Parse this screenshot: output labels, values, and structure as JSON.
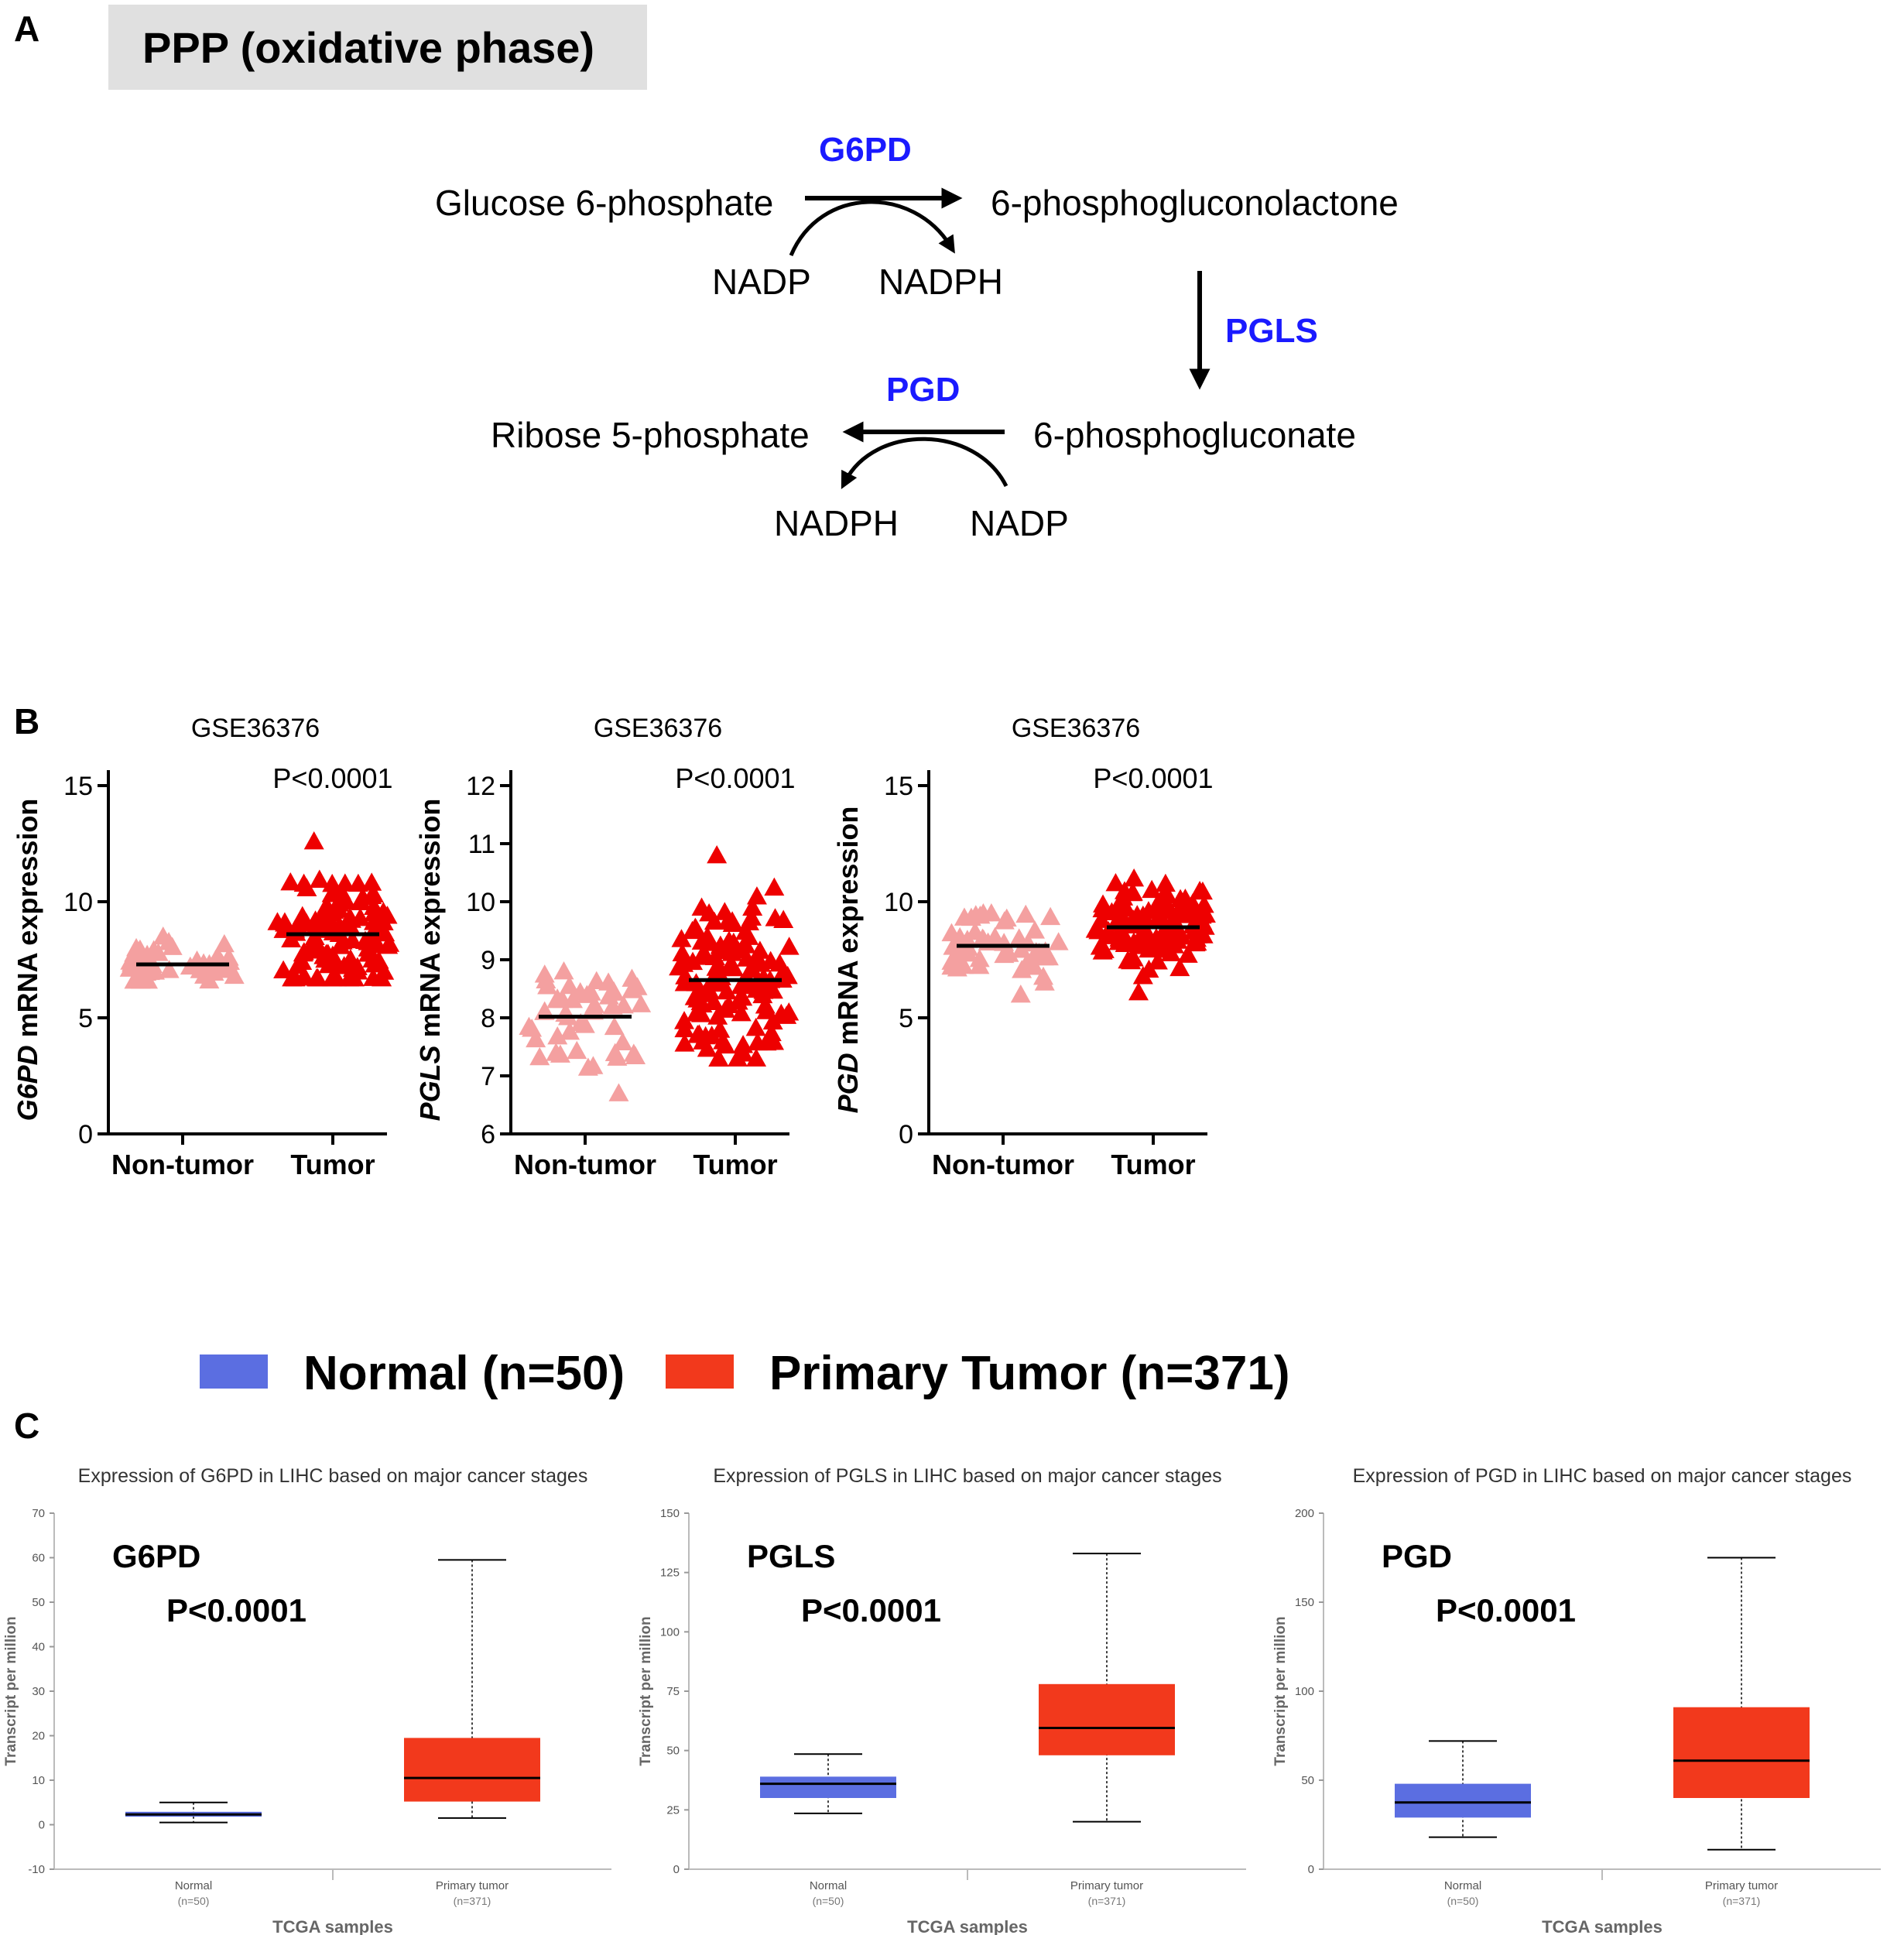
{
  "panels": {
    "a": "A",
    "b": "B",
    "c": "C"
  },
  "pathway": {
    "title": "PPP (oxidative phase)",
    "nodes": {
      "g6p": "Glucose 6-phosphate",
      "pgl": "6-phosphogluconolactone",
      "pg": "6-phosphogluconate",
      "r5p": "Ribose 5-phosphate",
      "nadp1": "NADP",
      "nadph1": "NADPH",
      "nadph2": "NADPH",
      "nadp2": "NADP"
    },
    "enzymes": {
      "g6pd": "G6PD",
      "pgls": "PGLS",
      "pgd": "PGD"
    },
    "colors": {
      "enzyme": "#1a1aff",
      "arrow": "#000000"
    }
  },
  "legend": {
    "normal": {
      "label": "Normal (n=50)",
      "color": "#5b6ee1"
    },
    "tumor": {
      "label": "Primary Tumor (n=371)",
      "color": "#f2391c"
    }
  },
  "chart_data": [
    {
      "type": "scatter",
      "title": "GSE36376",
      "gene": "G6PD",
      "ylabel_rest": " mRNA expression",
      "pvalue": "P<0.0001",
      "categories": [
        "Non-tumor",
        "Tumor"
      ],
      "ylim": [
        0,
        15
      ],
      "yticks": [
        0,
        5,
        10,
        15
      ],
      "series": [
        {
          "name": "Non-tumor",
          "color": "#f4a0a0",
          "mean": 7.3,
          "min": 6.6,
          "max": 8.5,
          "n": 50
        },
        {
          "name": "Tumor",
          "color": "#ee0000",
          "mean": 8.6,
          "min": 6.7,
          "max": 12.6,
          "n": 120
        }
      ]
    },
    {
      "type": "scatter",
      "title": "GSE36376",
      "gene": "PGLS",
      "ylabel_rest": " mRNA expression",
      "pvalue": "P<0.0001",
      "categories": [
        "Non-tumor",
        "Tumor"
      ],
      "ylim": [
        6,
        12
      ],
      "yticks": [
        6,
        7,
        8,
        9,
        10,
        11,
        12
      ],
      "series": [
        {
          "name": "Non-tumor",
          "color": "#f4a0a0",
          "mean": 8.02,
          "min": 6.7,
          "max": 8.8,
          "n": 50
        },
        {
          "name": "Tumor",
          "color": "#ee0000",
          "mean": 8.65,
          "min": 7.3,
          "max": 10.8,
          "n": 120
        }
      ]
    },
    {
      "type": "scatter",
      "title": "GSE36376",
      "gene": "PGD",
      "ylabel_rest": " mRNA expression",
      "pvalue": "P<0.0001",
      "categories": [
        "Non-tumor",
        "Tumor"
      ],
      "ylim": [
        0,
        15
      ],
      "yticks": [
        0,
        5,
        10,
        15
      ],
      "series": [
        {
          "name": "Non-tumor",
          "color": "#f4a0a0",
          "mean": 8.1,
          "min": 6.0,
          "max": 9.5,
          "n": 50
        },
        {
          "name": "Tumor",
          "color": "#ee0000",
          "mean": 8.9,
          "min": 6.1,
          "max": 11.0,
          "n": 120
        }
      ]
    },
    {
      "type": "box",
      "title": "Expression of G6PD in LIHC based on major cancer stages",
      "gene_label": "G6PD",
      "pvalue": "P<0.0001",
      "ylabel": "Transcript per million",
      "xlabel": "TCGA samples",
      "ylim": [
        -10,
        70
      ],
      "yticks": [
        -10,
        0,
        10,
        20,
        30,
        40,
        50,
        60,
        70
      ],
      "groups": [
        {
          "label": "Normal",
          "n_label": "(n=50)",
          "min": 0.5,
          "q1": 1.8,
          "median": 2.3,
          "q3": 2.9,
          "max": 5.0
        },
        {
          "label": "Primary tumor",
          "n_label": "(n=371)",
          "min": 1.5,
          "q1": 5.2,
          "median": 10.5,
          "q3": 19.5,
          "max": 59.5
        }
      ]
    },
    {
      "type": "box",
      "title": "Expression of PGLS in LIHC based on major cancer stages",
      "gene_label": "PGLS",
      "pvalue": "P<0.0001",
      "ylabel": "Transcript per million",
      "xlabel": "TCGA samples",
      "ylim": [
        0,
        150
      ],
      "yticks": [
        0,
        25,
        50,
        75,
        100,
        125,
        150
      ],
      "groups": [
        {
          "label": "Normal",
          "n_label": "(n=50)",
          "min": 23.5,
          "q1": 30.0,
          "median": 36.0,
          "q3": 39.0,
          "max": 48.5
        },
        {
          "label": "Primary tumor",
          "n_label": "(n=371)",
          "min": 20.0,
          "q1": 48.0,
          "median": 59.5,
          "q3": 78.0,
          "max": 133.0
        }
      ]
    },
    {
      "type": "box",
      "title": "Expression of PGD in LIHC based on major cancer stages",
      "gene_label": "PGD",
      "pvalue": "P<0.0001",
      "ylabel": "Transcript per million",
      "xlabel": "TCGA samples",
      "ylim": [
        0,
        200
      ],
      "yticks": [
        0,
        50,
        100,
        150,
        200
      ],
      "groups": [
        {
          "label": "Normal",
          "n_label": "(n=50)",
          "min": 18.0,
          "q1": 29.0,
          "median": 37.5,
          "q3": 48.0,
          "max": 72.0
        },
        {
          "label": "Primary tumor",
          "n_label": "(n=371)",
          "min": 11.0,
          "q1": 40.0,
          "median": 61.0,
          "q3": 91.0,
          "max": 175.0
        }
      ]
    }
  ]
}
